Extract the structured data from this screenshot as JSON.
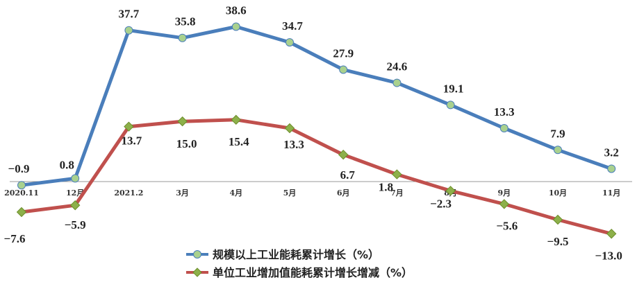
{
  "chart_data": {
    "type": "line",
    "categories": [
      "2020.11",
      "12月",
      "2021.2",
      "3月",
      "4月",
      "5月",
      "6月",
      "7月",
      "8月",
      "9月",
      "10月",
      "11月"
    ],
    "series": [
      {
        "name": "规模以上工业能耗累计增长（%）",
        "color": "#4a7ebb",
        "marker_color": "#a9d18e",
        "marker": "circle",
        "values": [
          -0.9,
          0.8,
          37.7,
          35.8,
          38.6,
          34.7,
          27.9,
          24.6,
          19.1,
          13.3,
          7.9,
          3.2
        ],
        "labels": [
          "−0.9",
          "0.8",
          "37.7",
          "35.8",
          "38.6",
          "34.7",
          "27.9",
          "24.6",
          "19.1",
          "13.3",
          "7.9",
          "3.2"
        ]
      },
      {
        "name": "单位工业增加值能耗累计增长增减（%）",
        "color": "#c0504d",
        "marker_color": "#8db04a",
        "marker": "diamond",
        "values": [
          -7.6,
          -5.9,
          13.7,
          15.0,
          15.4,
          13.3,
          6.7,
          1.8,
          -2.3,
          -5.6,
          -9.5,
          -13.0
        ],
        "labels": [
          "−7.6",
          "−5.9",
          "13.7",
          "15.0",
          "15.4",
          "13.3",
          "6.7",
          "1.8",
          "−2.3",
          "−5.6",
          "−9.5",
          "−13.0"
        ]
      }
    ],
    "ylim": [
      -16,
      45
    ],
    "grid": false,
    "legend_position": "bottom-center"
  }
}
